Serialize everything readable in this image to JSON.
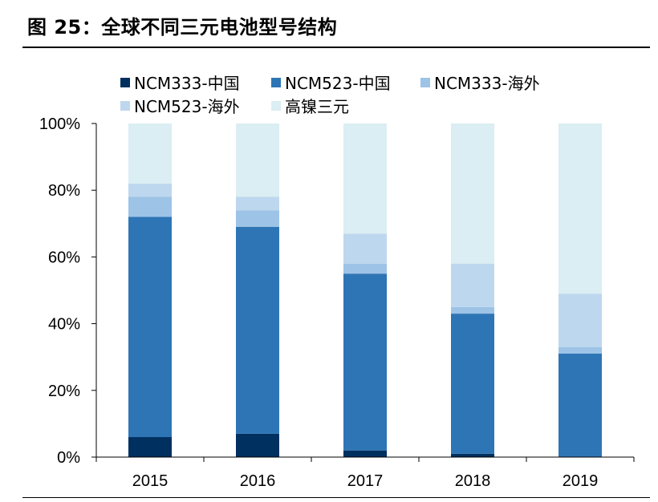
{
  "page": {
    "title": "图 25：全球不同三元电池型号结构"
  },
  "chart_data": {
    "type": "bar",
    "stacked": true,
    "title": "图 25：全球不同三元电池型号结构",
    "xlabel": "",
    "ylabel": "",
    "ylim": [
      0,
      100
    ],
    "yticks": [
      "0%",
      "20%",
      "40%",
      "60%",
      "80%",
      "100%"
    ],
    "grid": false,
    "legend_position": "top",
    "categories": [
      "2015",
      "2016",
      "2017",
      "2018",
      "2019"
    ],
    "series": [
      {
        "name": "NCM333-中国",
        "color": "#00305F",
        "values": [
          6,
          7,
          2,
          1,
          0
        ]
      },
      {
        "name": "NCM523-中国",
        "color": "#2E75B6",
        "values": [
          66,
          62,
          53,
          42,
          31
        ]
      },
      {
        "name": "NCM333-海外",
        "color": "#9DC3E6",
        "values": [
          6,
          5,
          3,
          2,
          2
        ]
      },
      {
        "name": "NCM523-海外",
        "color": "#BDD7EE",
        "values": [
          4,
          4,
          9,
          13,
          16
        ]
      },
      {
        "name": "高镍三元",
        "color": "#DAEEF3",
        "values": [
          18,
          22,
          33,
          42,
          51
        ]
      }
    ]
  }
}
